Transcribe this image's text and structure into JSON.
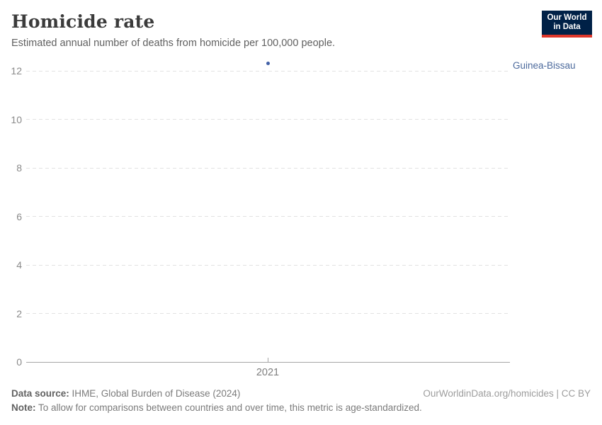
{
  "header": {
    "title": "Homicide rate",
    "subtitle": "Estimated annual number of deaths from homicide per 100,000 people."
  },
  "logo": {
    "line1": "Our World",
    "line2": "in Data",
    "bg_color": "#002147",
    "accent_color": "#dd362a"
  },
  "chart_data": {
    "type": "scatter",
    "title": "Homicide rate",
    "subtitle": "Estimated annual number of deaths from homicide per 100,000 people.",
    "series": [
      {
        "name": "Guinea-Bissau",
        "x": [
          2021
        ],
        "y": [
          12.3
        ],
        "point_color": "#4160a6",
        "label_color": "#4c6a9c"
      }
    ],
    "x_ticks": [
      "2021"
    ],
    "y_ticks": [
      0,
      2,
      4,
      6,
      8,
      10,
      12
    ],
    "ylim": [
      0,
      12.5
    ],
    "xlabel": "",
    "ylabel": "",
    "grid": true,
    "gridline_style": "dashed",
    "legend_position": "right-of-point"
  },
  "footer": {
    "data_source_label": "Data source:",
    "data_source_value": " IHME, Global Burden of Disease (2024)",
    "note_label": "Note:",
    "note_value": " To allow for comparisons between countries and over time, this metric is age-standardized.",
    "credit": "OurWorldinData.org/homicides | CC BY"
  }
}
